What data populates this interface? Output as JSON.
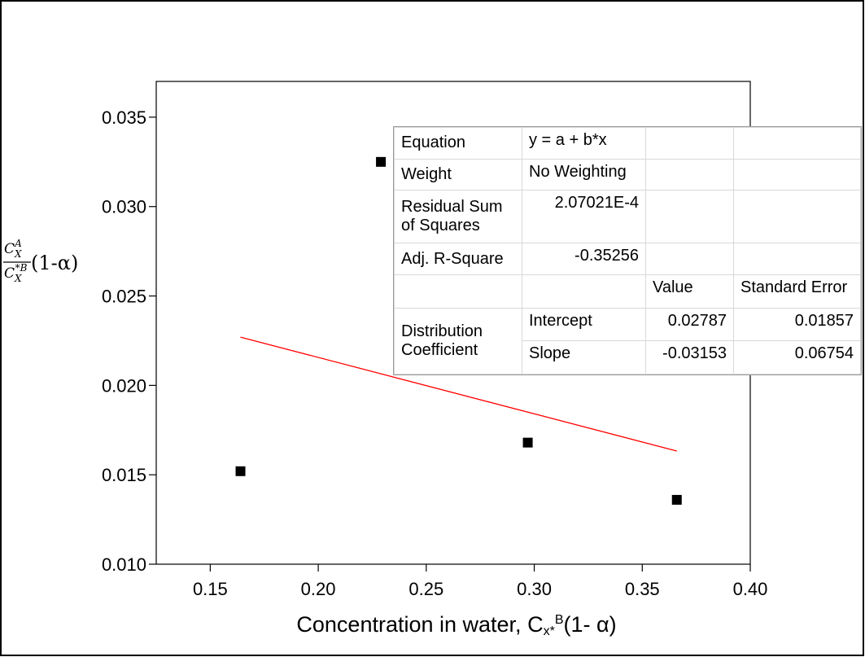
{
  "chart_data": {
    "type": "scatter",
    "xlabel": "Concentration in water, C",
    "xlabel_sub": "x*",
    "xlabel_sup": "B",
    "xlabel_tail": "(1- α)",
    "ylabel": {
      "num_base": "C",
      "num_sub": "X",
      "num_sup": "A",
      "den_base": "C",
      "den_sub": "X",
      "den_sup": "*B",
      "tail": "(1-α)"
    },
    "xlim": [
      0.125,
      0.4
    ],
    "ylim": [
      0.01,
      0.037
    ],
    "x_ticks": [
      0.15,
      0.2,
      0.25,
      0.3,
      0.35,
      0.4
    ],
    "x_tick_labels": [
      "0.15",
      "0.20",
      "0.25",
      "0.30",
      "0.35",
      "0.40"
    ],
    "y_ticks": [
      0.01,
      0.015,
      0.02,
      0.025,
      0.03,
      0.035
    ],
    "y_tick_labels": [
      "0.010",
      "0.015",
      "0.020",
      "0.025",
      "0.030",
      "0.035"
    ],
    "grid": false,
    "points": [
      {
        "x": 0.164,
        "y": 0.0152
      },
      {
        "x": 0.229,
        "y": 0.0325
      },
      {
        "x": 0.297,
        "y": 0.0168
      },
      {
        "x": 0.366,
        "y": 0.0136
      }
    ],
    "point_color": "#000000",
    "fit_line": {
      "intercept": 0.02787,
      "slope": -0.03153,
      "x_range": [
        0.164,
        0.366
      ],
      "color": "#ff0000"
    }
  },
  "fit_table": {
    "rows": [
      {
        "label": "Equation",
        "value": "y = a + b*x"
      },
      {
        "label": "Weight",
        "value": "No Weighting"
      },
      {
        "label": "Residual Sum of Squares",
        "value": "2.07021E-4"
      },
      {
        "label": "Adj. R-Square",
        "value": "-0.35256"
      }
    ],
    "header_value": "Value",
    "header_error": "Standard Error",
    "group_label": "Distribution Coefficient",
    "params": [
      {
        "name": "Intercept",
        "value": "0.02787",
        "error": "0.01857"
      },
      {
        "name": "Slope",
        "value": "-0.03153",
        "error": "0.06754"
      }
    ]
  }
}
